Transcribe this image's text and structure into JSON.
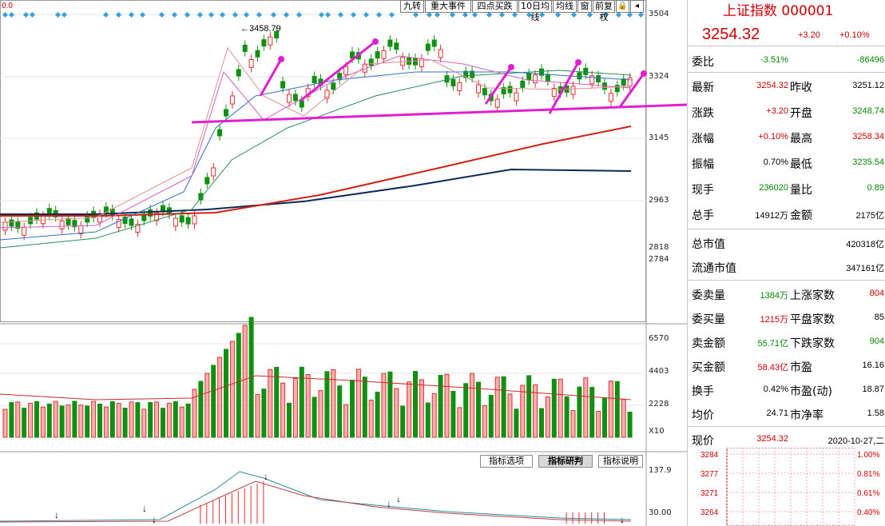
{
  "toolbar": {
    "left_label": "0.0",
    "buttons": [
      "九转",
      "重大事件",
      "四点买跌",
      "10日均线",
      "均线",
      "窗",
      "前复权"
    ],
    "icons": [
      "lock-icon",
      "pin-icon"
    ]
  },
  "price_axis": [
    "3504",
    "3324",
    "3145",
    "2963",
    "2818",
    "2784"
  ],
  "high_marker": "3458.79",
  "volume_axis": [
    "6570",
    "4403",
    "2228",
    "X10"
  ],
  "macd_axis": [
    "137.9",
    "30.00"
  ],
  "indicator_tabs": [
    "指标选项",
    "指标研判",
    "指标说明"
  ],
  "quote": {
    "title": "上证指数 000001",
    "price": "3254.32",
    "change": "+3.20",
    "change_pct": "+0.10%",
    "weibi_label": "委比",
    "weibi_pct": "-3.51%",
    "weibi_diff": "-86496",
    "rows": [
      {
        "l1": "最新",
        "v1": "3254.32",
        "c1": "red",
        "l2": "昨收",
        "v2": "3251.12",
        "c2": ""
      },
      {
        "l1": "涨跌",
        "v1": "+3.20",
        "c1": "red",
        "l2": "开盘",
        "v2": "3248.74",
        "c2": "green"
      },
      {
        "l1": "涨幅",
        "v1": "+0.10%",
        "c1": "red",
        "l2": "最高",
        "v2": "3258.34",
        "c2": "red"
      },
      {
        "l1": "振幅",
        "v1": "0.70%",
        "c1": "",
        "l2": "最低",
        "v2": "3235.54",
        "c2": "green"
      },
      {
        "l1": "现手",
        "v1": "236020",
        "c1": "green",
        "l2": "量比",
        "v2": "0.89",
        "c2": "green"
      },
      {
        "l1": "总手",
        "v1": "14912万",
        "c1": "",
        "l2": "金额",
        "v2": "2175亿",
        "c2": ""
      }
    ],
    "market_cap": [
      {
        "label": "总市值",
        "value": "420318亿"
      },
      {
        "label": "流通市值",
        "value": "347161亿"
      }
    ],
    "rows2": [
      {
        "l1": "委卖量",
        "v1": "1384万",
        "c1": "green",
        "l2": "上涨家数",
        "v2": "804",
        "c2": "red"
      },
      {
        "l1": "委买量",
        "v1": "1215万",
        "c1": "red",
        "l2": "平盘家数",
        "v2": "85",
        "c2": ""
      },
      {
        "l1": "卖金额",
        "v1": "55.71亿",
        "c1": "green",
        "l2": "下跌家数",
        "v2": "904",
        "c2": "green"
      },
      {
        "l1": "买金额",
        "v1": "58.43亿",
        "c1": "red",
        "l2": "市盈",
        "v2": "16.16",
        "c2": ""
      },
      {
        "l1": "换手",
        "v1": "0.42%",
        "c1": "",
        "l2": "市盈(动)",
        "v2": "18.87",
        "c2": ""
      },
      {
        "l1": "均价",
        "v1": "24.71",
        "c1": "",
        "l2": "市净率",
        "v2": "1.58",
        "c2": ""
      }
    ],
    "bottom": {
      "label": "现价",
      "value": "3254.32",
      "date": "2020-10-27,二"
    },
    "mini_left": [
      "3284",
      "3277",
      "3271",
      "3264"
    ],
    "mini_right": [
      "1.00%",
      "0.81%",
      "0.61%",
      "0.40%"
    ]
  },
  "colors": {
    "up": "#e03030",
    "down": "#109010",
    "annotation": "#e020d0",
    "ma_long_red": "#d02010",
    "ma_long_navy": "#0a2a5a"
  }
}
